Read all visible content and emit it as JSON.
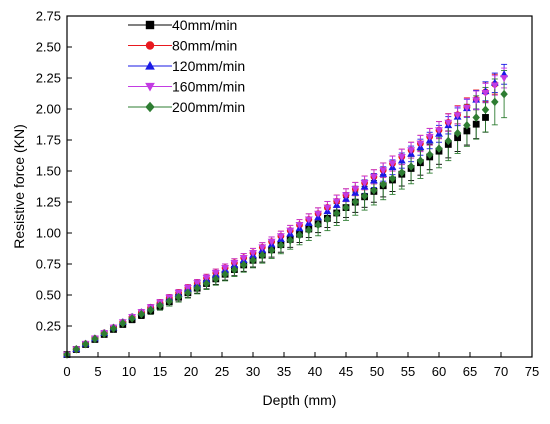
{
  "chart_data": {
    "type": "scatter",
    "title": "",
    "xlabel": "Depth (mm)",
    "ylabel": "Resistive force (KN)",
    "xlim": [
      0,
      75
    ],
    "ylim": [
      0.0,
      2.75
    ],
    "xticks": [
      0,
      5,
      10,
      15,
      20,
      25,
      30,
      35,
      40,
      45,
      50,
      55,
      60,
      65,
      70,
      75
    ],
    "yticks": [
      0.25,
      0.5,
      0.75,
      1.0,
      1.25,
      1.5,
      1.75,
      2.0,
      2.25,
      2.5,
      2.75
    ],
    "x_tick_labels": [
      "0",
      "5",
      "10",
      "15",
      "20",
      "25",
      "30",
      "35",
      "40",
      "45",
      "50",
      "55",
      "60",
      "65",
      "70",
      "75"
    ],
    "y_tick_labels": [
      "0.25",
      "0.50",
      "0.75",
      "1.00",
      "1.25",
      "1.50",
      "1.75",
      "2.00",
      "2.25",
      "2.50",
      "2.75"
    ],
    "grid": false,
    "legend_position": "top-left",
    "x": [
      0,
      1.5,
      3,
      4.5,
      6,
      7.5,
      9,
      10.5,
      12,
      13.5,
      15,
      16.5,
      18,
      19.5,
      21,
      22.5,
      24,
      25.5,
      27,
      28.5,
      30,
      31.5,
      33,
      34.5,
      36,
      37.5,
      39,
      40.5,
      42,
      43.5,
      45,
      46.5,
      48,
      49.5,
      51,
      52.5,
      54,
      55.5,
      57,
      58.5,
      60,
      61.5,
      63,
      64.5,
      66,
      67.5,
      69,
      70.5
    ],
    "series": [
      {
        "name": "40mm/min",
        "color": "#000000",
        "marker": "square",
        "anchors": [
          [
            0,
            0.02
          ],
          [
            10,
            0.29
          ],
          [
            20,
            0.53
          ],
          [
            30,
            0.78
          ],
          [
            40,
            1.06
          ],
          [
            50,
            1.35
          ],
          [
            60,
            1.66
          ],
          [
            68,
            1.95
          ]
        ],
        "error": [
          0.01,
          0.06,
          0.12
        ]
      },
      {
        "name": "80mm/min",
        "color": "#e8191f",
        "marker": "circle",
        "anchors": [
          [
            0,
            0.02
          ],
          [
            10,
            0.31
          ],
          [
            20,
            0.57
          ],
          [
            30,
            0.84
          ],
          [
            40,
            1.14
          ],
          [
            50,
            1.47
          ],
          [
            60,
            1.83
          ],
          [
            69,
            2.2
          ]
        ],
        "error": [
          0.01,
          0.04,
          0.08
        ]
      },
      {
        "name": "120mm/min",
        "color": "#1a1ae6",
        "marker": "triangle-up",
        "anchors": [
          [
            0,
            0.02
          ],
          [
            10,
            0.31
          ],
          [
            20,
            0.56
          ],
          [
            30,
            0.82
          ],
          [
            40,
            1.11
          ],
          [
            50,
            1.44
          ],
          [
            60,
            1.8
          ],
          [
            70.5,
            2.28
          ]
        ],
        "error": [
          0.01,
          0.04,
          0.08
        ]
      },
      {
        "name": "160mm/min",
        "color": "#c33be3",
        "marker": "triangle-down",
        "anchors": [
          [
            0,
            0.02
          ],
          [
            10,
            0.31
          ],
          [
            20,
            0.57
          ],
          [
            30,
            0.84
          ],
          [
            40,
            1.14
          ],
          [
            50,
            1.47
          ],
          [
            60,
            1.83
          ],
          [
            70.5,
            2.25
          ]
        ],
        "error": [
          0.01,
          0.04,
          0.08
        ]
      },
      {
        "name": "200mm/min",
        "color": "#2e7d32",
        "marker": "diamond",
        "anchors": [
          [
            0,
            0.02
          ],
          [
            10,
            0.3
          ],
          [
            20,
            0.53
          ],
          [
            30,
            0.78
          ],
          [
            40,
            1.05
          ],
          [
            50,
            1.36
          ],
          [
            60,
            1.68
          ],
          [
            70.5,
            2.12
          ]
        ],
        "error": [
          0.01,
          0.07,
          0.19
        ]
      }
    ]
  }
}
